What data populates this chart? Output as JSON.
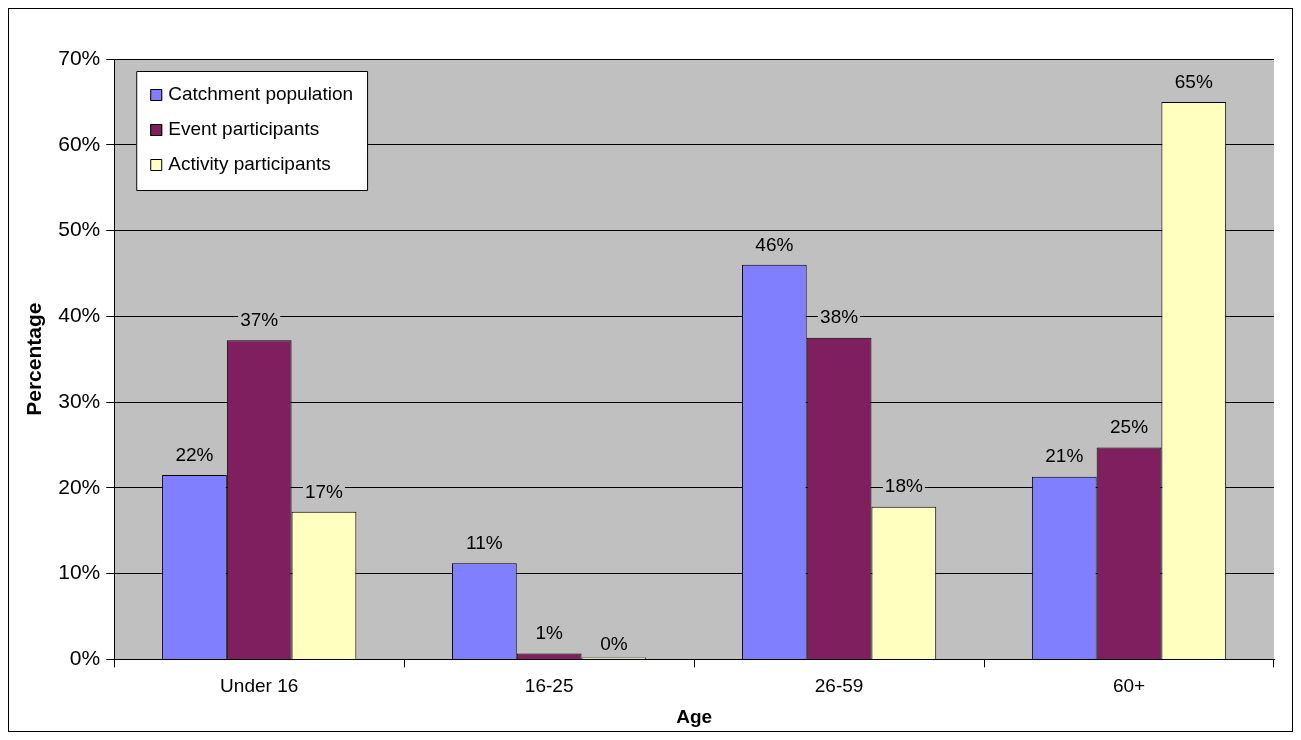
{
  "chart_data": {
    "type": "bar",
    "xlabel": "Age",
    "ylabel": "Percentage",
    "categories": [
      "Under 16",
      "16-25",
      "26-59",
      "60+"
    ],
    "series": [
      {
        "name": "Catchment population",
        "color": "#8080ff",
        "values": [
          21.5,
          11.2,
          46,
          21.3
        ],
        "value_labels": [
          "22%",
          "11%",
          "46%",
          "21%"
        ]
      },
      {
        "name": "Event participants",
        "color": "#7f1f5f",
        "values": [
          37.2,
          0.7,
          37.5,
          24.7
        ],
        "value_labels": [
          "37%",
          "1%",
          "38%",
          "25%"
        ]
      },
      {
        "name": "Activity participants",
        "color": "#ffffc0",
        "values": [
          17.2,
          0,
          17.8,
          65
        ],
        "value_labels": [
          "17%",
          "0%",
          "18%",
          "65%"
        ]
      }
    ],
    "ylim": [
      0,
      70
    ],
    "yticks": [
      {
        "value": 0,
        "label": "0%"
      },
      {
        "value": 10,
        "label": "10%"
      },
      {
        "value": 20,
        "label": "20%"
      },
      {
        "value": 30,
        "label": "30%"
      },
      {
        "value": 40,
        "label": "40%"
      },
      {
        "value": 50,
        "label": "50%"
      },
      {
        "value": 60,
        "label": "60%"
      },
      {
        "value": 70,
        "label": "70%"
      }
    ],
    "grid": "y",
    "legend": "top left"
  }
}
